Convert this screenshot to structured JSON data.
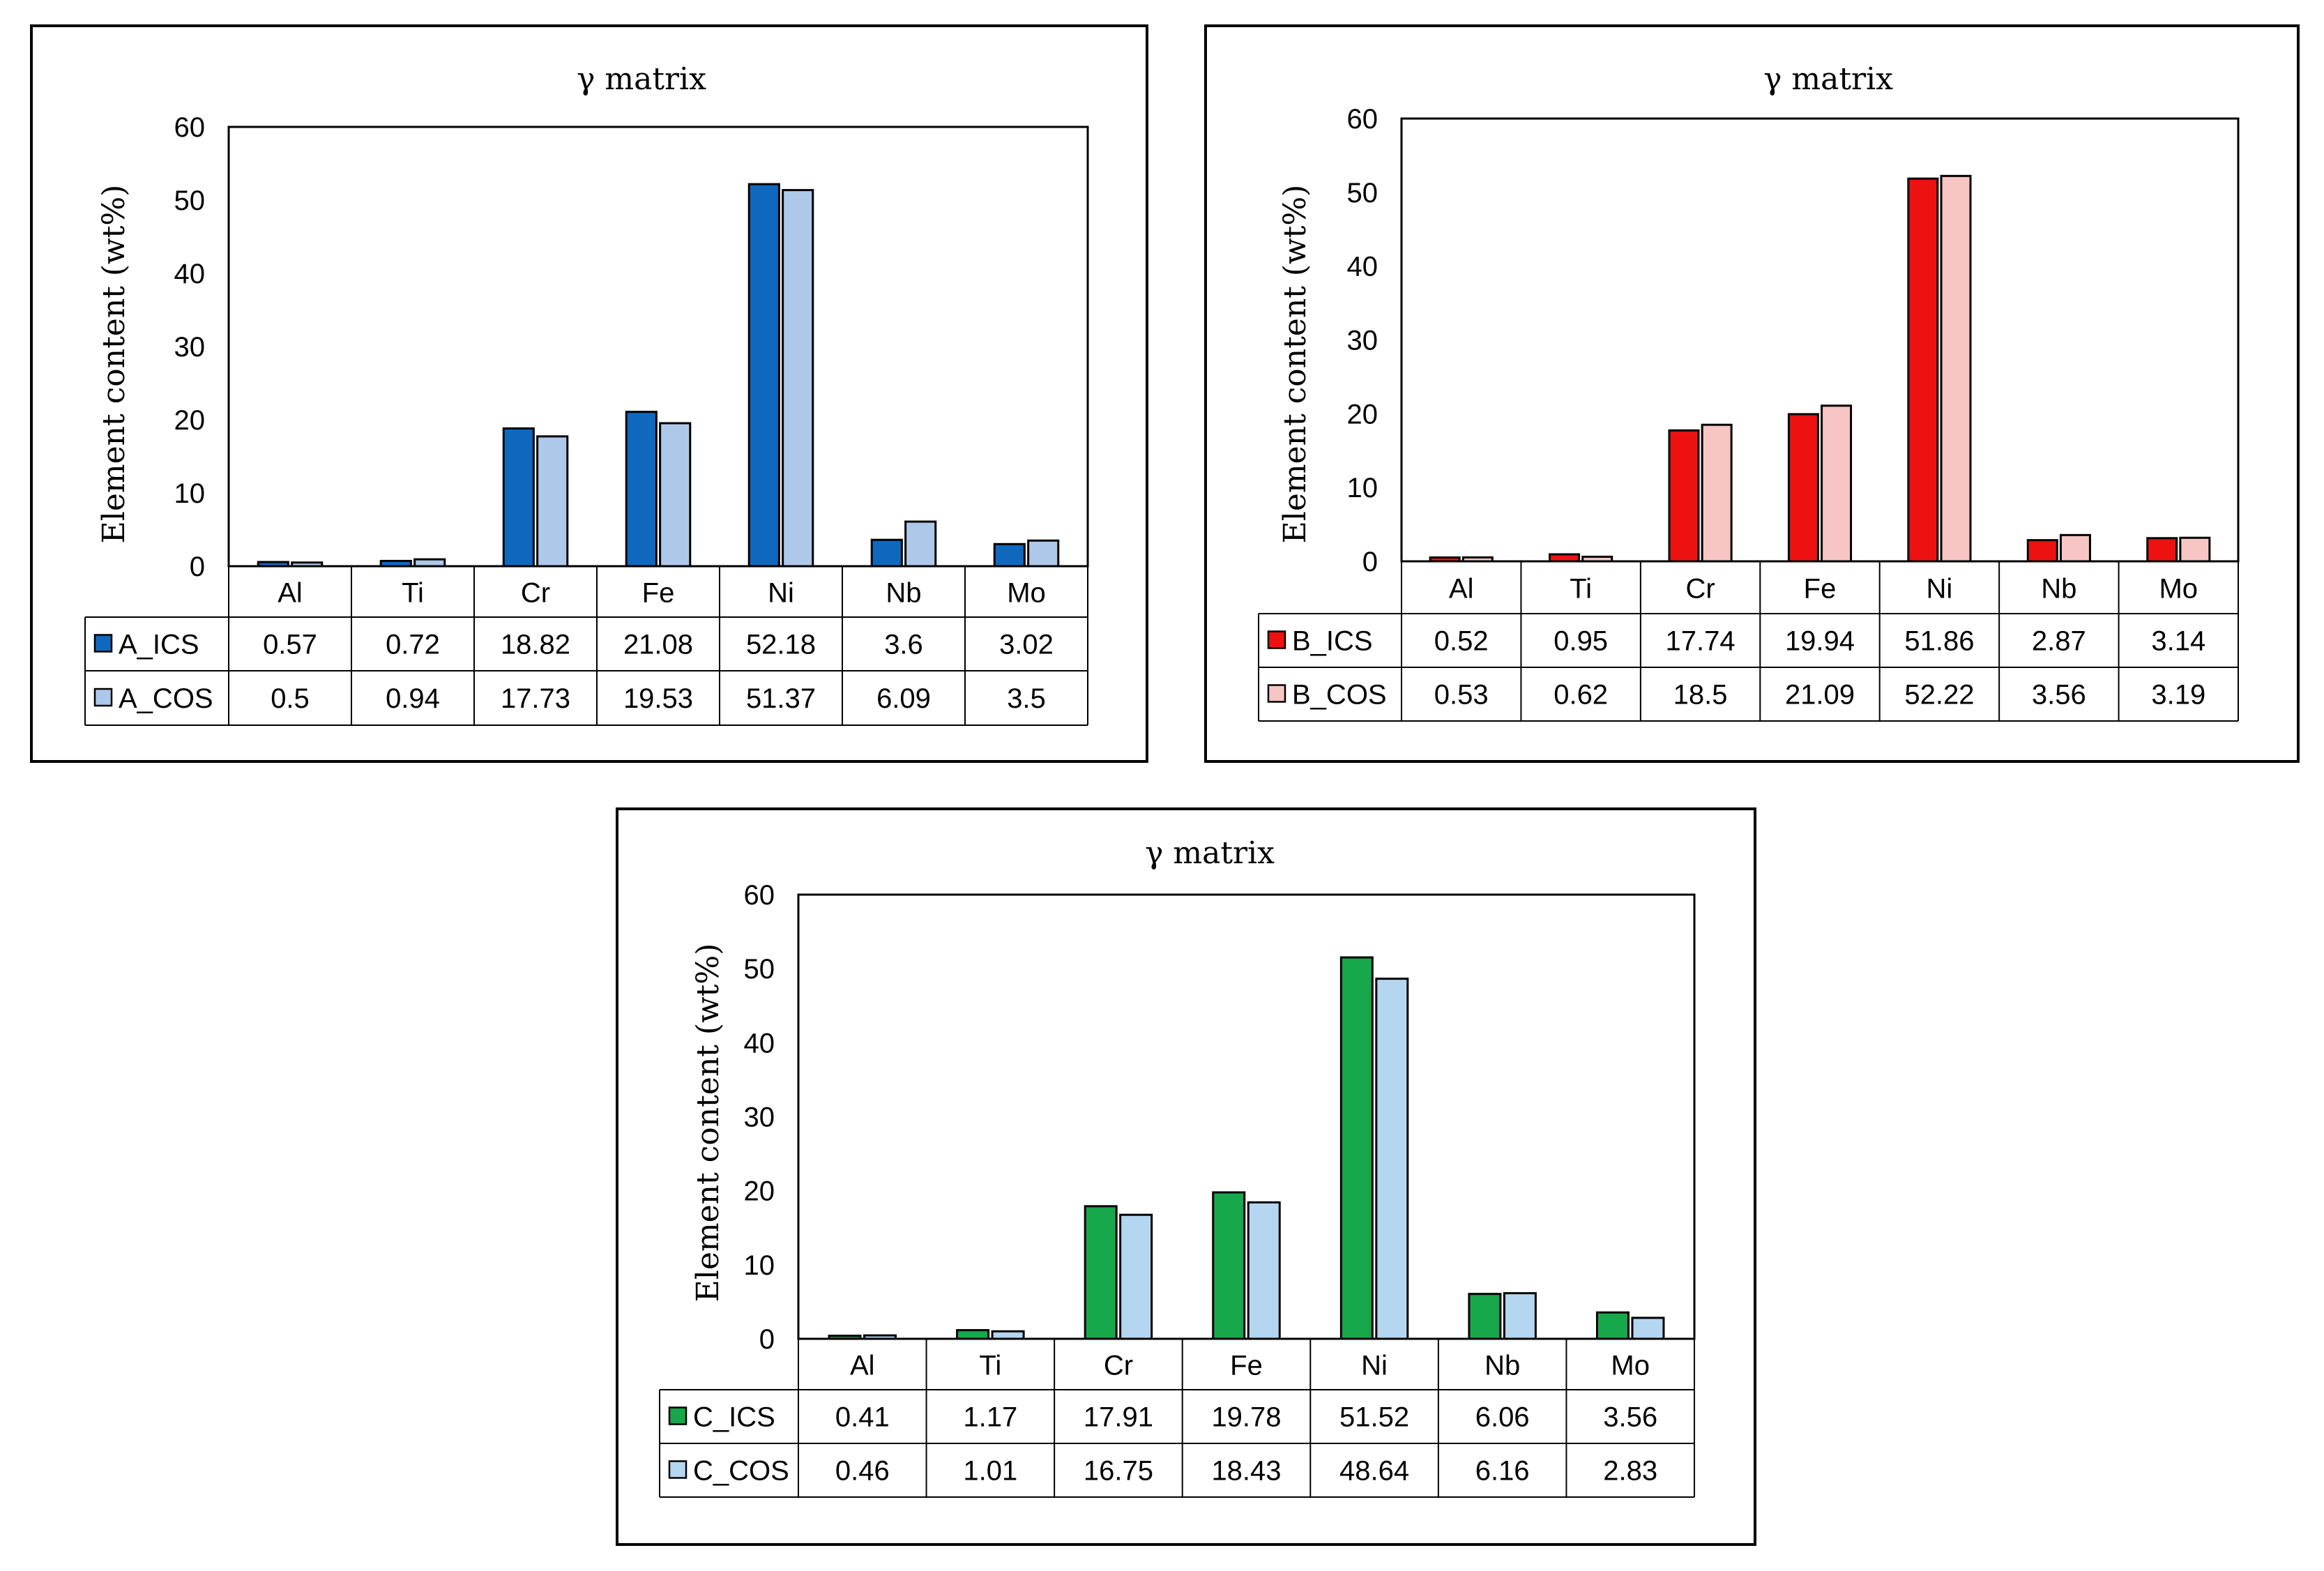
{
  "chart_data": [
    {
      "type": "bar",
      "title": "γ matrix",
      "xlabel": "",
      "ylabel": "Element content (wt%)",
      "ylim": [
        0,
        60
      ],
      "yticks": [
        0,
        10,
        20,
        30,
        40,
        50,
        60
      ],
      "categories": [
        "Al",
        "Ti",
        "Cr",
        "Fe",
        "Ni",
        "Nb",
        "Mo"
      ],
      "data_table": true,
      "series": [
        {
          "name": "A_ICS",
          "color": "#0f68be",
          "values": [
            "0.57",
            "0.72",
            "18.82",
            "21.08",
            "52.18",
            "3.6",
            "3.02"
          ]
        },
        {
          "name": "A_COS",
          "color": "#aec8ea",
          "values": [
            "0.5",
            "0.94",
            "17.73",
            "19.53",
            "51.37",
            "6.09",
            "3.5"
          ]
        }
      ]
    },
    {
      "type": "bar",
      "title": "γ matrix",
      "xlabel": "",
      "ylabel": "Element content (wt%)",
      "ylim": [
        0,
        60
      ],
      "yticks": [
        0,
        10,
        20,
        30,
        40,
        50,
        60
      ],
      "categories": [
        "Al",
        "Ti",
        "Cr",
        "Fe",
        "Ni",
        "Nb",
        "Mo"
      ],
      "data_table": true,
      "series": [
        {
          "name": "B_ICS",
          "color": "#ee1111",
          "values": [
            "0.52",
            "0.95",
            "17.74",
            "19.94",
            "51.86",
            "2.87",
            "3.14"
          ]
        },
        {
          "name": "B_COS",
          "color": "#f8c5c5",
          "values": [
            "0.53",
            "0.62",
            "18.5",
            "21.09",
            "52.22",
            "3.56",
            "3.19"
          ]
        }
      ]
    },
    {
      "type": "bar",
      "title": "γ matrix",
      "xlabel": "",
      "ylabel": "Element content (wt%)",
      "ylim": [
        0,
        60
      ],
      "yticks": [
        0,
        10,
        20,
        30,
        40,
        50,
        60
      ],
      "categories": [
        "Al",
        "Ti",
        "Cr",
        "Fe",
        "Ni",
        "Nb",
        "Mo"
      ],
      "data_table": true,
      "series": [
        {
          "name": "C_ICS",
          "color": "#16a84a",
          "values": [
            "0.41",
            "1.17",
            "17.91",
            "19.78",
            "51.52",
            "6.06",
            "3.56"
          ]
        },
        {
          "name": "C_COS",
          "color": "#b4d6f0",
          "values": [
            "0.46",
            "1.01",
            "16.75",
            "18.43",
            "48.64",
            "6.16",
            "2.83"
          ]
        }
      ]
    }
  ]
}
